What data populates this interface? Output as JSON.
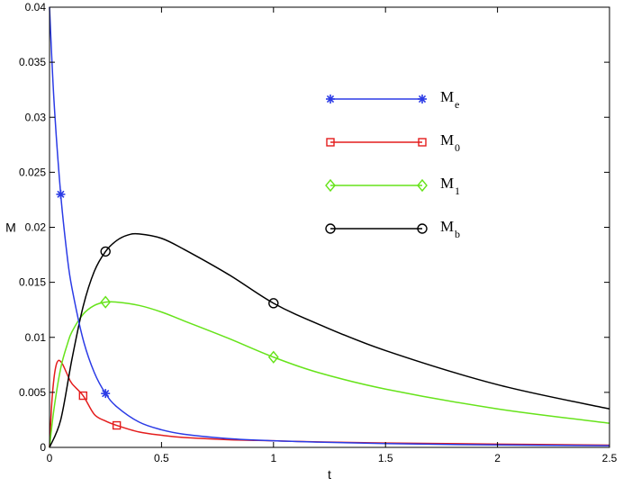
{
  "chart_data": {
    "type": "line",
    "xlabel": "t",
    "ylabel": "M",
    "xlim": [
      0,
      2.5
    ],
    "ylim": [
      0,
      0.04
    ],
    "x_ticks": [
      "0",
      "0.5",
      "1",
      "1.5",
      "2",
      "2.5"
    ],
    "x_tick_values": [
      0,
      0.5,
      1,
      1.5,
      2,
      2.5
    ],
    "y_ticks": [
      "0",
      "0.005",
      "0.01",
      "0.015",
      "0.02",
      "0.025",
      "0.03",
      "0.035",
      "0.04"
    ],
    "y_tick_values": [
      0,
      0.005,
      0.01,
      0.015,
      0.02,
      0.025,
      0.03,
      0.035,
      0.04
    ],
    "grid": false,
    "legend_position": "top-right",
    "series": [
      {
        "name": "M",
        "subscript": "e",
        "color": "#2b3be6",
        "marker": "asterisk",
        "x": [
          0,
          0.02,
          0.05,
          0.08,
          0.1,
          0.15,
          0.2,
          0.25,
          0.3,
          0.4,
          0.5,
          0.6,
          0.8,
          1.0,
          1.2,
          1.5,
          2.0,
          2.5
        ],
        "y": [
          0.0405,
          0.0315,
          0.023,
          0.0172,
          0.0145,
          0.0098,
          0.0068,
          0.0049,
          0.0037,
          0.0023,
          0.0016,
          0.0012,
          0.0008,
          0.0006,
          0.00048,
          0.00035,
          0.00022,
          0.00015
        ],
        "marker_x": [
          0.05,
          0.25
        ]
      },
      {
        "name": "M",
        "subscript": "0",
        "color": "#e41d1d",
        "marker": "square",
        "x": [
          0,
          0.01,
          0.02,
          0.03,
          0.04,
          0.05,
          0.06,
          0.08,
          0.1,
          0.15,
          0.2,
          0.25,
          0.3,
          0.4,
          0.5,
          0.6,
          0.8,
          1.0,
          1.2,
          1.5,
          2.0,
          2.5
        ],
        "y": [
          0,
          0.004,
          0.0063,
          0.0075,
          0.0079,
          0.0078,
          0.0075,
          0.0066,
          0.0058,
          0.0047,
          0.003,
          0.0024,
          0.002,
          0.0014,
          0.0011,
          0.0009,
          0.0007,
          0.0006,
          0.0005,
          0.0004,
          0.0003,
          0.0002
        ],
        "marker_x": [
          0.15,
          0.3
        ]
      },
      {
        "name": "M",
        "subscript": "1",
        "color": "#66e31a",
        "marker": "diamond",
        "x": [
          0,
          0.02,
          0.05,
          0.08,
          0.1,
          0.15,
          0.2,
          0.25,
          0.3,
          0.4,
          0.5,
          0.6,
          0.8,
          1.0,
          1.2,
          1.5,
          2.0,
          2.5
        ],
        "y": [
          0,
          0.0035,
          0.0072,
          0.0094,
          0.0105,
          0.0121,
          0.0129,
          0.0132,
          0.0132,
          0.0129,
          0.0123,
          0.0115,
          0.0099,
          0.0082,
          0.0068,
          0.0053,
          0.0035,
          0.0022
        ],
        "marker_x": [
          0.25,
          1.0
        ]
      },
      {
        "name": "M",
        "subscript": "b",
        "color": "#000000",
        "marker": "circle",
        "x": [
          0,
          0.05,
          0.1,
          0.15,
          0.2,
          0.25,
          0.3,
          0.35,
          0.4,
          0.5,
          0.6,
          0.8,
          1.0,
          1.2,
          1.5,
          2.0,
          2.5
        ],
        "y": [
          0,
          0.0025,
          0.008,
          0.0128,
          0.016,
          0.0178,
          0.0188,
          0.0193,
          0.0194,
          0.019,
          0.018,
          0.0157,
          0.0131,
          0.0112,
          0.0088,
          0.0057,
          0.0035
        ],
        "marker_x": [
          0.25,
          1.0
        ]
      }
    ]
  }
}
